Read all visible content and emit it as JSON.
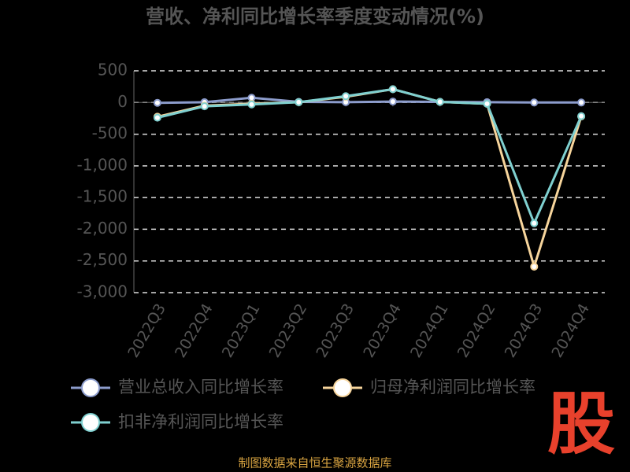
{
  "chart_data": {
    "type": "line",
    "title": "营收、净利同比增长率季度变动情况(%)",
    "categories": [
      "2022Q3",
      "2022Q4",
      "2023Q1",
      "2023Q2",
      "2023Q3",
      "2023Q4",
      "2024Q1",
      "2024Q2",
      "2024Q3",
      "2024Q4"
    ],
    "series": [
      {
        "name": "营业总收入同比增长率",
        "color": "#8c9ccc",
        "values": [
          -5,
          5,
          75,
          10,
          5,
          15,
          10,
          5,
          0,
          0
        ]
      },
      {
        "name": "归母净利润同比增长率",
        "color": "#f7d59c",
        "values": [
          -225,
          -50,
          -20,
          5,
          90,
          210,
          10,
          -20,
          -2590,
          -220
        ]
      },
      {
        "name": "扣非净利润同比增长率",
        "color": "#7fd0d0",
        "values": [
          -240,
          -60,
          -30,
          5,
          100,
          210,
          10,
          -20,
          -1905,
          -215
        ]
      }
    ],
    "ylim": [
      -3000,
      500
    ],
    "yticks": [
      {
        "value": -3000,
        "label": "-3,000"
      },
      {
        "value": -2500,
        "label": "-2,500"
      },
      {
        "value": -2000,
        "label": "-2,000"
      },
      {
        "value": -1500,
        "label": "-1,500"
      },
      {
        "value": -1000,
        "label": "-1,000"
      },
      -500,
      0,
      500
    ],
    "grid": true,
    "footer": "制图数据来自恒生聚源数据库",
    "logo": "股"
  }
}
